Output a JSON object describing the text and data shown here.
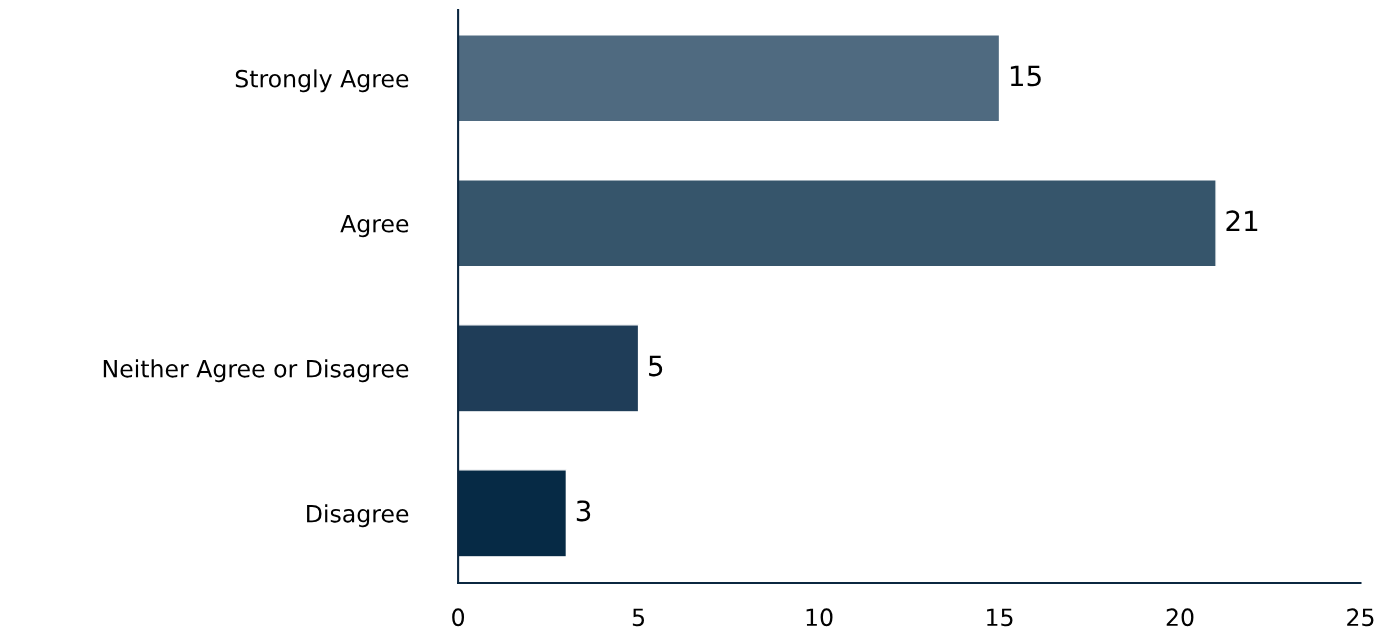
{
  "chart_data": {
    "type": "bar",
    "orientation": "horizontal",
    "categories": [
      "Strongly Agree",
      "Agree",
      "Neither Agree or Disagree",
      "Disagree"
    ],
    "values": [
      15,
      21,
      5,
      3
    ],
    "colors": [
      "#4f6a80",
      "#36556b",
      "#1f3d58",
      "#062a45"
    ],
    "xlim": [
      0,
      25
    ],
    "xticks": [
      0,
      5,
      10,
      15,
      20,
      25
    ],
    "data_labels": true,
    "grid": false,
    "legend": false
  }
}
